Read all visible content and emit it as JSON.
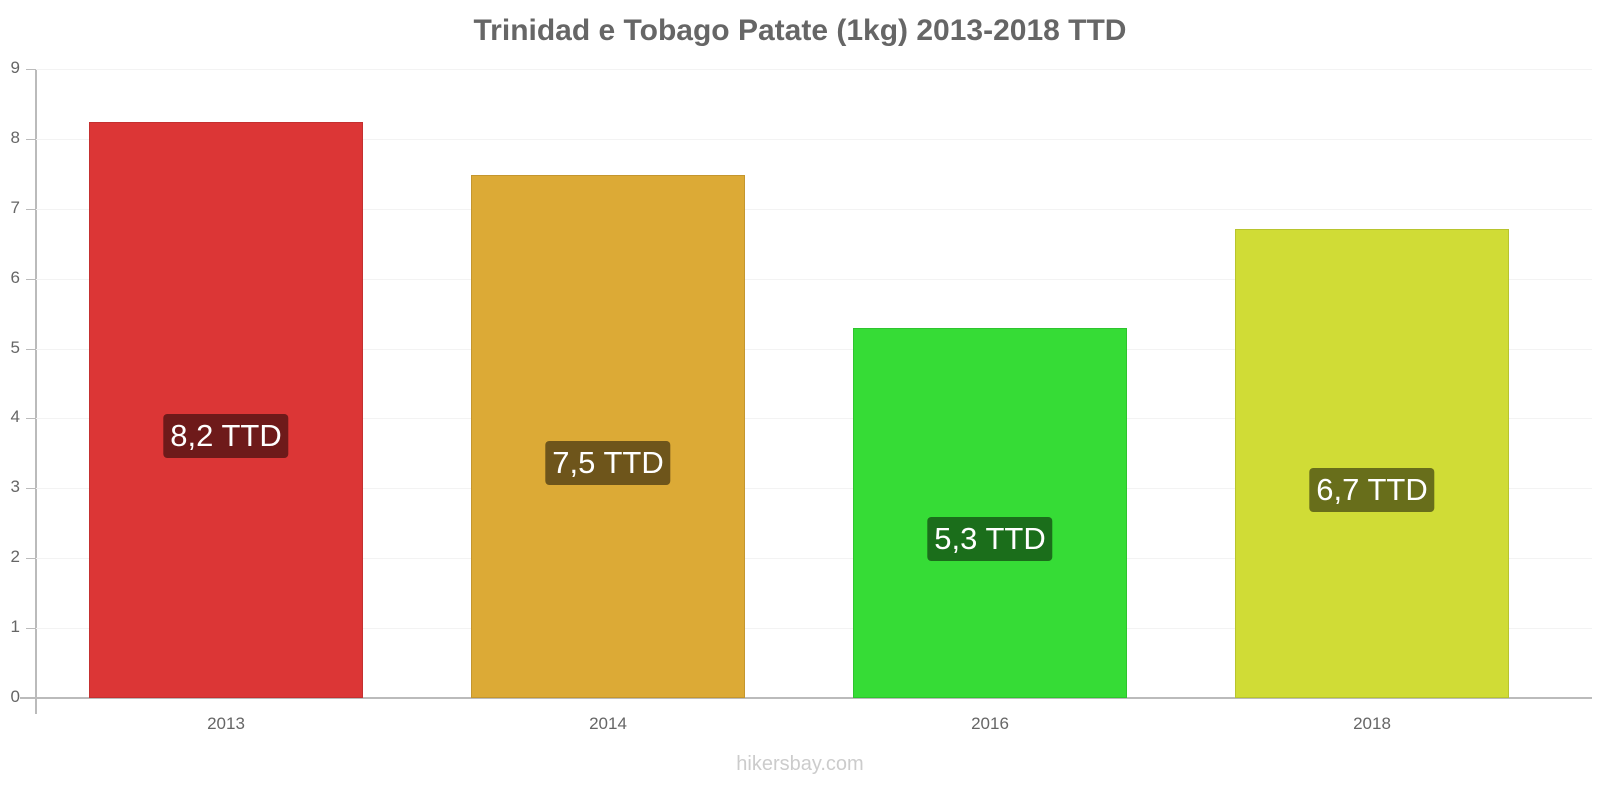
{
  "header": {
    "title": "Trinidad e Tobago Patate (1kg) 2013-2018 TTD"
  },
  "footer": {
    "source": "hikersbay.com"
  },
  "axis": {
    "y_ticks": [
      "0",
      "1",
      "2",
      "3",
      "4",
      "5",
      "6",
      "7",
      "8",
      "9"
    ],
    "x_ticks": [
      "2013",
      "2014",
      "2016",
      "2018"
    ]
  },
  "bars": [
    {
      "year": "2013",
      "label": "8,2 TTD",
      "color": "#dc3636",
      "border": "#c43030",
      "label_bg": "#6e1a1a"
    },
    {
      "year": "2014",
      "label": "7,5 TTD",
      "color": "#dcaa36",
      "border": "#c4962e",
      "label_bg": "#6e551b"
    },
    {
      "year": "2016",
      "label": "5,3 TTD",
      "color": "#36dc36",
      "border": "#2ec42e",
      "label_bg": "#1b6e1b"
    },
    {
      "year": "2018",
      "label": "6,7 TTD",
      "color": "#d0dc36",
      "border": "#b8c42e",
      "label_bg": "#686e1b"
    }
  ],
  "chart_data": {
    "type": "bar",
    "title": "Trinidad e Tobago Patate (1kg) 2013-2018 TTD",
    "categories": [
      "2013",
      "2014",
      "2016",
      "2018"
    ],
    "values": [
      8.24,
      7.48,
      5.29,
      6.71
    ],
    "data_labels": [
      "8,2 TTD",
      "7,5 TTD",
      "5,3 TTD",
      "6,7 TTD"
    ],
    "xlabel": "",
    "ylabel": "",
    "ylim": [
      0,
      9
    ],
    "yticks": [
      0,
      1,
      2,
      3,
      4,
      5,
      6,
      7,
      8,
      9
    ],
    "grid": true,
    "legend": null,
    "colors": [
      "#dc3636",
      "#dcaa36",
      "#36dc36",
      "#d0dc36"
    ],
    "source": "hikersbay.com"
  }
}
